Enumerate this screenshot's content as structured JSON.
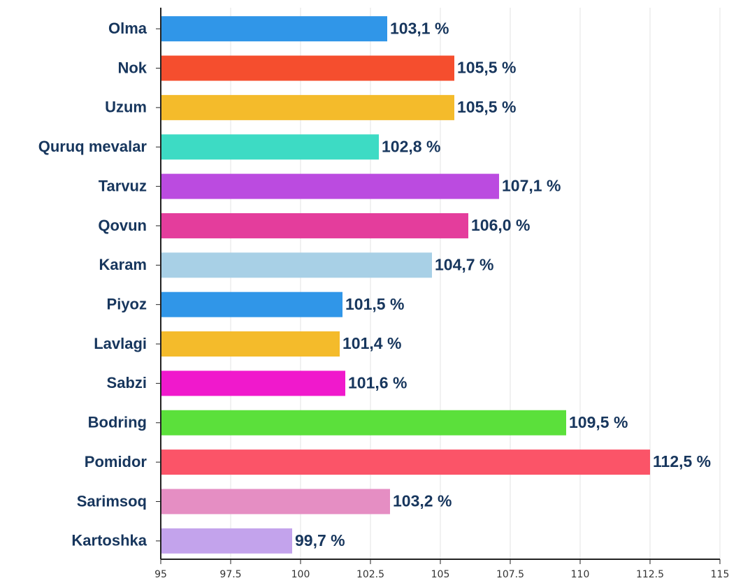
{
  "chart_data": {
    "type": "barh",
    "categories": [
      "Olma",
      "Nok",
      "Uzum",
      "Quruq mevalar",
      "Tarvuz",
      "Qovun",
      "Karam",
      "Piyoz",
      "Lavlagi",
      "Sabzi",
      "Bodring",
      "Pomidor",
      "Sarimsoq",
      "Kartoshka"
    ],
    "values": [
      103.1,
      105.5,
      105.5,
      102.8,
      107.1,
      106.0,
      104.7,
      101.5,
      101.4,
      101.6,
      109.5,
      112.5,
      103.2,
      99.7
    ],
    "value_labels": [
      "103,1 %",
      "105,5 %",
      "105,5 %",
      "102,8 %",
      "107,1 %",
      "106,0 %",
      "104,7 %",
      "101,5 %",
      "101,4 %",
      "101,6 %",
      "109,5 %",
      "112,5 %",
      "103,2 %",
      "99,7 %"
    ],
    "colors": [
      "#3096e8",
      "#f54e2e",
      "#f4bb2b",
      "#3ddbc4",
      "#bb4be0",
      "#e43d9c",
      "#a8d0e6",
      "#3096e8",
      "#f4bb2b",
      "#f019cc",
      "#5be03b",
      "#fb5468",
      "#e58ec3",
      "#c3a3ec"
    ],
    "xlim": [
      95,
      115
    ],
    "xticks": [
      95,
      97.5,
      100,
      102.5,
      105,
      107.5,
      110,
      112.5,
      115
    ],
    "grid": true
  }
}
